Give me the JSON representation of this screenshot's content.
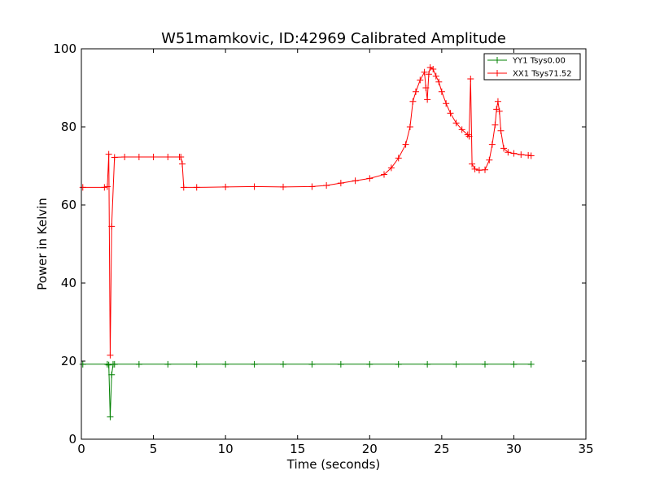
{
  "chart_data": {
    "type": "line",
    "title": "W51mamkovic, ID:42969 Calibrated Amplitude",
    "xlabel": "Time (seconds)",
    "ylabel": "Power in Kelvin",
    "xlim": [
      0,
      35
    ],
    "ylim": [
      0,
      100
    ],
    "xticks": [
      "0",
      "5",
      "10",
      "15",
      "20",
      "25",
      "30",
      "35"
    ],
    "yticks": [
      "0",
      "20",
      "40",
      "60",
      "80",
      "100"
    ],
    "grid": false,
    "legend_position": "top-right",
    "series": [
      {
        "name": "YY1 Tsys0.00",
        "color": "#008000",
        "marker": "+",
        "x": [
          0.1,
          1.8,
          1.9,
          2.0,
          2.1,
          2.2,
          2.3,
          4.0,
          6.0,
          8.0,
          10.0,
          12.0,
          14.0,
          16.0,
          18.0,
          20.0,
          22.0,
          24.0,
          26.0,
          28.0,
          30.0,
          31.2
        ],
        "y": [
          19.2,
          19.2,
          19.0,
          5.7,
          16.5,
          19.2,
          19.2,
          19.2,
          19.2,
          19.2,
          19.2,
          19.2,
          19.2,
          19.2,
          19.2,
          19.2,
          19.2,
          19.2,
          19.2,
          19.2,
          19.2,
          19.2
        ]
      },
      {
        "name": "XX1 Tsys71.52",
        "color": "#ff0000",
        "marker": "+",
        "x": [
          0.1,
          1.6,
          1.8,
          1.9,
          2.0,
          2.1,
          2.3,
          3.0,
          4.0,
          5.0,
          6.0,
          6.8,
          6.9,
          7.0,
          7.1,
          8.0,
          10.0,
          12.0,
          14.0,
          16.0,
          17.0,
          18.0,
          19.0,
          20.0,
          21.0,
          21.5,
          22.0,
          22.5,
          22.8,
          23.0,
          23.2,
          23.5,
          23.8,
          23.9,
          24.0,
          24.1,
          24.2,
          24.4,
          24.6,
          24.8,
          25.0,
          25.3,
          25.6,
          26.0,
          26.4,
          26.8,
          26.9,
          27.0,
          27.1,
          27.3,
          27.6,
          28.0,
          28.3,
          28.5,
          28.7,
          28.8,
          28.9,
          29.0,
          29.1,
          29.3,
          29.6,
          30.0,
          30.5,
          31.0,
          31.2
        ],
        "y": [
          64.5,
          64.5,
          64.7,
          73.0,
          21.5,
          54.5,
          72.2,
          72.3,
          72.3,
          72.3,
          72.3,
          72.3,
          72.3,
          70.5,
          64.5,
          64.5,
          64.6,
          64.7,
          64.6,
          64.7,
          65.0,
          65.6,
          66.2,
          66.8,
          67.8,
          69.5,
          72.0,
          75.5,
          80.0,
          86.5,
          89.0,
          92.0,
          94.0,
          90.0,
          87.0,
          93.5,
          95.2,
          94.8,
          93.0,
          91.5,
          89.0,
          86.0,
          83.5,
          81.0,
          79.3,
          78.0,
          77.6,
          92.3,
          70.5,
          69.2,
          68.9,
          69.0,
          71.5,
          75.5,
          80.5,
          84.5,
          86.5,
          84.0,
          79.0,
          74.5,
          73.5,
          73.2,
          72.9,
          72.7,
          72.6
        ]
      }
    ]
  }
}
